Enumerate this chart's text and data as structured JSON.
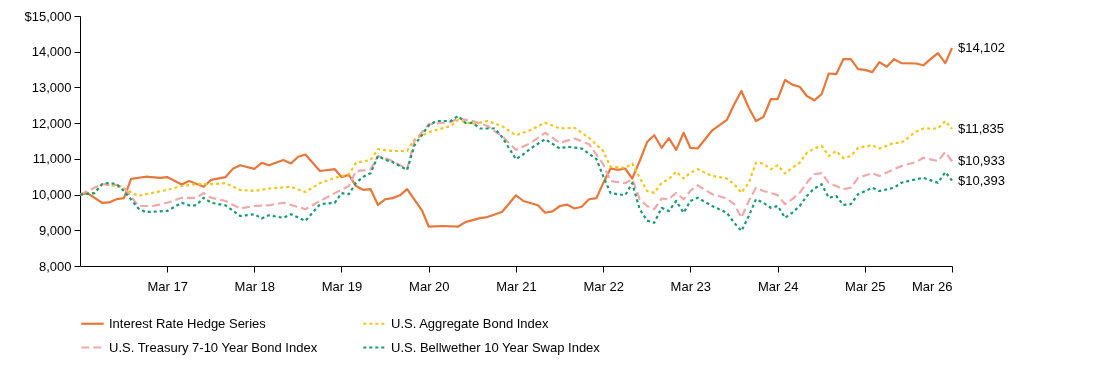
{
  "chart_data": {
    "type": "line",
    "xlim": [
      "2016-03",
      "2026-03"
    ],
    "ylim": [
      8000,
      15000
    ],
    "xticks": [
      {
        "value": "2017-03",
        "label": "Mar 17"
      },
      {
        "value": "2018-03",
        "label": "Mar 18"
      },
      {
        "value": "2019-03",
        "label": "Mar 19"
      },
      {
        "value": "2020-03",
        "label": "Mar 20"
      },
      {
        "value": "2021-03",
        "label": "Mar 21"
      },
      {
        "value": "2022-03",
        "label": "Mar 22"
      },
      {
        "value": "2023-03",
        "label": "Mar 23"
      },
      {
        "value": "2024-03",
        "label": "Mar 24"
      },
      {
        "value": "2025-03",
        "label": "Mar 25"
      },
      {
        "value": "2026-03",
        "label": "Mar 26"
      }
    ],
    "yticks": [
      {
        "value": 8000,
        "label": "8,000"
      },
      {
        "value": 9000,
        "label": "9,000"
      },
      {
        "value": 10000,
        "label": "10,000"
      },
      {
        "value": 11000,
        "label": "11,000"
      },
      {
        "value": 12000,
        "label": "12,000"
      },
      {
        "value": 13000,
        "label": "13,000"
      },
      {
        "value": 14000,
        "label": "14,000"
      },
      {
        "value": 15000,
        "label": "$15,000"
      }
    ],
    "grid": false,
    "legend": "bottom",
    "marker": "none",
    "series": [
      {
        "name": "Interest Rate Hedge Series",
        "color": "#e8773a",
        "line_style": "solid",
        "x": [
          "2016-03",
          "2016-04",
          "2016-06",
          "2016-07",
          "2016-08",
          "2016-09",
          "2016-10",
          "2016-12",
          "2017-02",
          "2017-03",
          "2017-05",
          "2017-06",
          "2017-08",
          "2017-09",
          "2017-11",
          "2017-12",
          "2018-01",
          "2018-03",
          "2018-04",
          "2018-05",
          "2018-07",
          "2018-08",
          "2018-09",
          "2018-10",
          "2018-12",
          "2019-02",
          "2019-03",
          "2019-04",
          "2019-05",
          "2019-06",
          "2019-07",
          "2019-08",
          "2019-09",
          "2019-10",
          "2019-11",
          "2019-12",
          "2020-02",
          "2020-03",
          "2020-05",
          "2020-07",
          "2020-08",
          "2020-10",
          "2020-11",
          "2021-01",
          "2021-03",
          "2021-04",
          "2021-06",
          "2021-07",
          "2021-08",
          "2021-09",
          "2021-10",
          "2021-11",
          "2021-12",
          "2022-01",
          "2022-02",
          "2022-03",
          "2022-04",
          "2022-05",
          "2022-06",
          "2022-07",
          "2022-08",
          "2022-09",
          "2022-10",
          "2022-11",
          "2022-12",
          "2023-01",
          "2023-02",
          "2023-03",
          "2023-04",
          "2023-06",
          "2023-08",
          "2023-09",
          "2023-10",
          "2023-11",
          "2023-12",
          "2024-01",
          "2024-02",
          "2024-03",
          "2024-04",
          "2024-05",
          "2024-06",
          "2024-07",
          "2024-08",
          "2024-09",
          "2024-10",
          "2024-11",
          "2024-12",
          "2025-01",
          "2025-02",
          "2025-03",
          "2025-04",
          "2025-05",
          "2025-06",
          "2025-07",
          "2025-08",
          "2025-10",
          "2025-11",
          "2025-12",
          "2026-01",
          "2026-02",
          "2026-03"
        ],
        "values": [
          10000,
          10040,
          9770,
          9780,
          9870,
          9900,
          10440,
          10500,
          10470,
          10490,
          10280,
          10380,
          10220,
          10410,
          10490,
          10720,
          10820,
          10720,
          10890,
          10820,
          10970,
          10870,
          11060,
          11120,
          10660,
          10710,
          10490,
          10550,
          10240,
          10130,
          10150,
          9710,
          9870,
          9900,
          9980,
          10150,
          9560,
          9100,
          9120,
          9100,
          9230,
          9340,
          9370,
          9510,
          9980,
          9820,
          9700,
          9490,
          9530,
          9680,
          9720,
          9610,
          9660,
          9870,
          9900,
          10320,
          10730,
          10690,
          10730,
          10450,
          10940,
          11470,
          11660,
          11310,
          11580,
          11250,
          11730,
          11310,
          11290,
          11800,
          12090,
          12530,
          12900,
          12430,
          12060,
          12170,
          12670,
          12670,
          13210,
          13080,
          13020,
          12760,
          12640,
          12810,
          13390,
          13370,
          13790,
          13790,
          13510,
          13490,
          13430,
          13710,
          13580,
          13790,
          13680,
          13670,
          13620,
          13790,
          13960,
          13680,
          14102
        ]
      },
      {
        "name": "U.S. Aggregate Bond Index",
        "color": "#f5c518",
        "line_style": "dotted",
        "x": [
          "2016-03",
          "2016-05",
          "2016-06",
          "2016-08",
          "2016-09",
          "2016-11",
          "2016-12",
          "2017-03",
          "2017-05",
          "2017-07",
          "2017-09",
          "2017-11",
          "2018-01",
          "2018-03",
          "2018-05",
          "2018-08",
          "2018-10",
          "2018-12",
          "2019-02",
          "2019-04",
          "2019-05",
          "2019-07",
          "2019-08",
          "2019-10",
          "2019-12",
          "2020-01",
          "2020-03",
          "2020-06",
          "2020-07",
          "2020-09",
          "2020-11",
          "2021-01",
          "2021-03",
          "2021-05",
          "2021-07",
          "2021-09",
          "2021-11",
          "2022-01",
          "2022-03",
          "2022-04",
          "2022-06",
          "2022-07",
          "2022-08",
          "2022-09",
          "2022-10",
          "2022-11",
          "2022-12",
          "2023-01",
          "2023-02",
          "2023-03",
          "2023-04",
          "2023-06",
          "2023-08",
          "2023-09",
          "2023-10",
          "2023-11",
          "2023-12",
          "2024-01",
          "2024-02",
          "2024-03",
          "2024-04",
          "2024-05",
          "2024-06",
          "2024-07",
          "2024-08",
          "2024-09",
          "2024-10",
          "2024-11",
          "2024-12",
          "2025-01",
          "2025-02",
          "2025-04",
          "2025-05",
          "2025-07",
          "2025-08",
          "2025-10",
          "2025-11",
          "2026-01",
          "2026-02",
          "2026-03"
        ],
        "values": [
          10000,
          10040,
          10290,
          10240,
          10170,
          9960,
          10010,
          10130,
          10240,
          10290,
          10290,
          10320,
          10130,
          10100,
          10170,
          10220,
          10070,
          10320,
          10470,
          10570,
          10890,
          10970,
          11270,
          11220,
          11220,
          11550,
          11750,
          11920,
          12090,
          11970,
          12060,
          11920,
          11660,
          11810,
          12010,
          11850,
          11870,
          11590,
          11220,
          10780,
          10750,
          10870,
          10470,
          10100,
          10050,
          10330,
          10430,
          10640,
          10450,
          10610,
          10710,
          10520,
          10450,
          10290,
          10050,
          10330,
          10890,
          10870,
          10710,
          10820,
          10590,
          10750,
          10890,
          11170,
          11290,
          11360,
          11080,
          11220,
          11020,
          11080,
          11310,
          11380,
          11290,
          11450,
          11450,
          11760,
          11850,
          11850,
          12060,
          11835
        ]
      },
      {
        "name": "U.S. Treasury 7-10 Year Bond Index",
        "color": "#f0a8a8",
        "line_style": "dashed",
        "x": [
          "2016-03",
          "2016-06",
          "2016-08",
          "2016-09",
          "2016-11",
          "2017-01",
          "2017-03",
          "2017-05",
          "2017-07",
          "2017-08",
          "2017-09",
          "2017-11",
          "2018-01",
          "2018-03",
          "2018-05",
          "2018-07",
          "2018-10",
          "2018-12",
          "2019-02",
          "2019-04",
          "2019-05",
          "2019-07",
          "2019-08",
          "2019-10",
          "2019-12",
          "2020-01",
          "2020-03",
          "2020-06",
          "2020-07",
          "2020-09",
          "2020-11",
          "2021-01",
          "2021-03",
          "2021-05",
          "2021-07",
          "2021-09",
          "2021-11",
          "2022-01",
          "2022-03",
          "2022-04",
          "2022-06",
          "2022-07",
          "2022-08",
          "2022-09",
          "2022-10",
          "2022-11",
          "2022-12",
          "2023-01",
          "2023-02",
          "2023-03",
          "2023-04",
          "2023-06",
          "2023-08",
          "2023-09",
          "2023-10",
          "2023-11",
          "2023-12",
          "2024-01",
          "2024-02",
          "2024-03",
          "2024-04",
          "2024-05",
          "2024-06",
          "2024-07",
          "2024-08",
          "2024-09",
          "2024-10",
          "2024-11",
          "2024-12",
          "2025-01",
          "2025-02",
          "2025-04",
          "2025-05",
          "2025-07",
          "2025-08",
          "2025-10",
          "2025-11",
          "2026-01",
          "2026-02",
          "2026-03"
        ],
        "values": [
          10000,
          10290,
          10270,
          10200,
          9680,
          9680,
          9770,
          9910,
          9910,
          10040,
          9910,
          9820,
          9610,
          9680,
          9700,
          9770,
          9590,
          9820,
          10040,
          10240,
          10660,
          10700,
          11080,
          10940,
          10710,
          11500,
          11970,
          12030,
          12130,
          12060,
          11920,
          11640,
          11250,
          11440,
          11730,
          11450,
          11570,
          11410,
          10850,
          10380,
          10320,
          10430,
          9870,
          9680,
          9590,
          9890,
          9870,
          10050,
          9870,
          10100,
          10260,
          10010,
          9890,
          9730,
          9350,
          9820,
          10190,
          10100,
          10050,
          9980,
          9730,
          9870,
          10050,
          10330,
          10570,
          10600,
          10330,
          10240,
          10150,
          10190,
          10470,
          10600,
          10520,
          10710,
          10800,
          10910,
          11030,
          10940,
          11190,
          10933
        ]
      },
      {
        "name": "U.S. Bellwether 10 Year Swap Index",
        "color": "#1a9a73",
        "line_style": "dotted",
        "x": [
          "2016-03",
          "2016-05",
          "2016-06",
          "2016-07",
          "2016-08",
          "2016-09",
          "2016-11",
          "2016-12",
          "2017-03",
          "2017-05",
          "2017-06",
          "2017-07",
          "2017-08",
          "2017-09",
          "2017-11",
          "2018-01",
          "2018-03",
          "2018-04",
          "2018-05",
          "2018-07",
          "2018-08",
          "2018-10",
          "2018-12",
          "2019-02",
          "2019-03",
          "2019-04",
          "2019-05",
          "2019-06",
          "2019-07",
          "2019-08",
          "2019-09",
          "2019-10",
          "2019-12",
          "2020-01",
          "2020-03",
          "2020-04",
          "2020-06",
          "2020-07",
          "2020-08",
          "2020-09",
          "2020-10",
          "2020-12",
          "2021-01",
          "2021-03",
          "2021-04",
          "2021-05",
          "2021-07",
          "2021-09",
          "2021-10",
          "2021-12",
          "2022-02",
          "2022-03",
          "2022-04",
          "2022-06",
          "2022-07",
          "2022-08",
          "2022-09",
          "2022-10",
          "2022-11",
          "2022-12",
          "2023-01",
          "2023-02",
          "2023-03",
          "2023-04",
          "2023-06",
          "2023-08",
          "2023-09",
          "2023-10",
          "2023-11",
          "2023-12",
          "2024-01",
          "2024-02",
          "2024-03",
          "2024-04",
          "2024-05",
          "2024-06",
          "2024-07",
          "2024-08",
          "2024-09",
          "2024-10",
          "2024-11",
          "2024-12",
          "2025-01",
          "2025-02",
          "2025-04",
          "2025-05",
          "2025-07",
          "2025-08",
          "2025-10",
          "2025-11",
          "2026-01",
          "2026-02",
          "2026-03"
        ],
        "values": [
          10000,
          10040,
          10290,
          10330,
          10290,
          10100,
          9610,
          9510,
          9540,
          9770,
          9700,
          9700,
          9910,
          9770,
          9700,
          9400,
          9450,
          9330,
          9420,
          9350,
          9450,
          9260,
          9730,
          9770,
          10040,
          10010,
          10330,
          10500,
          10600,
          11080,
          10970,
          10910,
          10690,
          11380,
          11940,
          12060,
          12060,
          12200,
          12010,
          12010,
          11850,
          11850,
          11620,
          10990,
          11130,
          11290,
          11550,
          11290,
          11340,
          11290,
          10990,
          10520,
          10040,
          9980,
          10320,
          9590,
          9270,
          9210,
          9630,
          9540,
          9820,
          9490,
          9820,
          9910,
          9680,
          9490,
          9210,
          8980,
          9400,
          9870,
          9770,
          9630,
          9680,
          9350,
          9490,
          9680,
          9960,
          10170,
          10290,
          9910,
          9960,
          9710,
          9730,
          10010,
          10190,
          10100,
          10190,
          10330,
          10430,
          10470,
          10330,
          10630,
          10393
        ]
      }
    ],
    "annotations": [
      {
        "text": "$14,102",
        "x": "2026-03",
        "y": 14102
      },
      {
        "text": "$11,835",
        "x": "2026-03",
        "y": 11835
      },
      {
        "text": "$10,933",
        "x": "2026-03",
        "y": 10933
      },
      {
        "text": "$10,393",
        "x": "2026-03",
        "y": 10393
      }
    ]
  }
}
